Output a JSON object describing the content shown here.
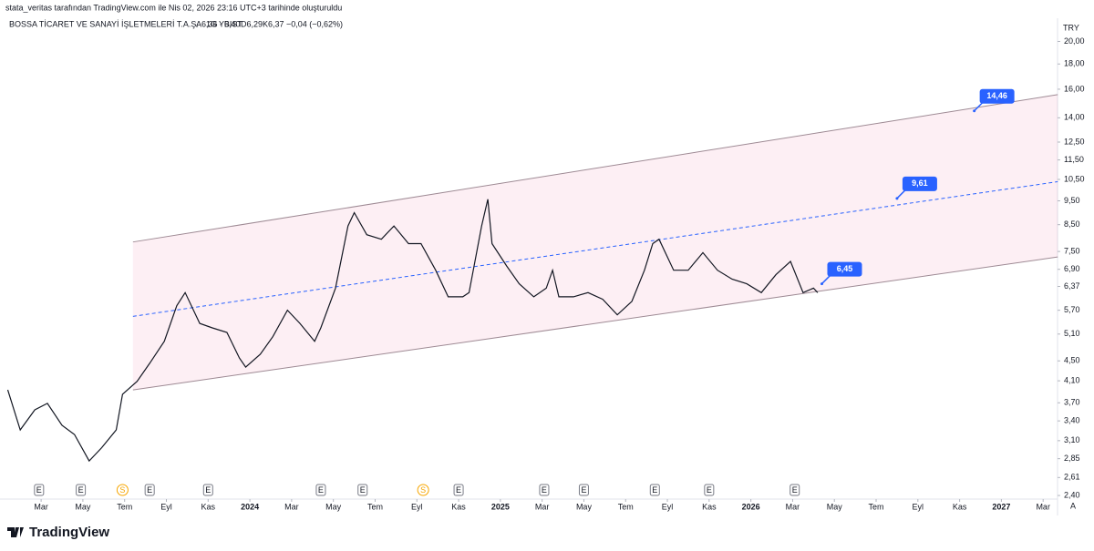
{
  "header": {
    "credit": "stata_veritas tarafından TradingView.com ile Nis 02, 2026 23:16 UTC+3 tarihinde oluşturuldu",
    "symbol": "BOSSA TİCARET VE SANAYİ İŞLETMELERİ T.A.Ş. · 1G · BIST",
    "ohlc": [
      "A6,36",
      "Y6,40",
      "D6,29",
      "K6,37"
    ],
    "change": "−0,04 (−0,62%)",
    "logo": "TradingView"
  },
  "chart_data": {
    "type": "line",
    "log_scale": true,
    "grid": false,
    "currency": "TRY",
    "series": [
      {
        "name": "BOSSA",
        "color": "#131722",
        "x": [
          0.4,
          1.0,
          1.7,
          2.3,
          3.0,
          3.6,
          4.3,
          4.9,
          5.6,
          5.9,
          6.6,
          7.2,
          7.9,
          8.5,
          8.9,
          9.6,
          10.2,
          10.9,
          11.5,
          11.8,
          12.5,
          13.1,
          13.8,
          14.4,
          15.1,
          15.4,
          16.1,
          16.7,
          17.0,
          17.6,
          18.3,
          18.9,
          19.6,
          20.2,
          20.9,
          21.5,
          22.2,
          22.5,
          23.1,
          23.4,
          23.6,
          24.3,
          24.9,
          25.6,
          26.2,
          26.5,
          26.8,
          27.5,
          28.2,
          28.9,
          29.6,
          30.3,
          30.9,
          31.3,
          31.6,
          32.3,
          33.0,
          33.7,
          34.4,
          35.1,
          35.8,
          36.5,
          37.2,
          37.9,
          38.5,
          39.0,
          39.2
        ],
        "values": [
          3.93,
          3.26,
          3.58,
          3.69,
          3.33,
          3.19,
          2.82,
          3.0,
          3.26,
          3.85,
          4.09,
          4.45,
          4.93,
          5.82,
          6.19,
          5.36,
          5.25,
          5.14,
          4.56,
          4.37,
          4.64,
          5.04,
          5.7,
          5.36,
          4.93,
          5.25,
          6.32,
          8.45,
          8.99,
          8.11,
          7.94,
          8.45,
          7.78,
          7.78,
          6.87,
          6.07,
          6.07,
          6.19,
          8.45,
          9.57,
          7.78,
          7.01,
          6.45,
          6.07,
          6.32,
          6.87,
          6.07,
          6.07,
          6.19,
          6.0,
          5.58,
          5.94,
          6.87,
          7.78,
          7.94,
          6.87,
          6.87,
          7.46,
          6.87,
          6.59,
          6.45,
          6.19,
          6.73,
          7.16,
          6.19,
          6.32,
          6.19
        ]
      }
    ],
    "channel": {
      "color": "#9e8a94",
      "fill": "rgba(233,30,99,0.07)",
      "mid_color": "#2962ff",
      "upper": [
        {
          "x": 6.4,
          "y": 7.84
        },
        {
          "x": 50.7,
          "y": 15.6
        }
      ],
      "middle": [
        {
          "x": 6.4,
          "y": 5.54
        },
        {
          "x": 50.7,
          "y": 10.39
        }
      ],
      "lower": [
        {
          "x": 6.4,
          "y": 3.93
        },
        {
          "x": 50.7,
          "y": 7.31
        }
      ]
    },
    "annotations": [
      {
        "x": 46.7,
        "value": 14.46,
        "label": "14,46"
      },
      {
        "x": 43.0,
        "value": 9.61,
        "label": "9,61"
      },
      {
        "x": 39.4,
        "value": 6.45,
        "label": "6,45"
      }
    ],
    "events": [
      {
        "x": 1.9,
        "label": "E"
      },
      {
        "x": 3.9,
        "label": "E"
      },
      {
        "x": 5.9,
        "label": "S"
      },
      {
        "x": 7.2,
        "label": "E"
      },
      {
        "x": 10.0,
        "label": "E"
      },
      {
        "x": 15.4,
        "label": "E"
      },
      {
        "x": 17.4,
        "label": "E"
      },
      {
        "x": 20.3,
        "label": "S"
      },
      {
        "x": 22.0,
        "label": "E"
      },
      {
        "x": 26.1,
        "label": "E"
      },
      {
        "x": 28.0,
        "label": "E"
      },
      {
        "x": 31.4,
        "label": "E"
      },
      {
        "x": 34.0,
        "label": "E"
      },
      {
        "x": 38.1,
        "label": "E"
      }
    ],
    "xlim": [
      0.03,
      50.69
    ],
    "xticks": [
      {
        "value": 2,
        "label": "Mar"
      },
      {
        "value": 4,
        "label": "May"
      },
      {
        "value": 6,
        "label": "Tem"
      },
      {
        "value": 8,
        "label": "Eyl"
      },
      {
        "value": 10,
        "label": "Kas"
      },
      {
        "value": 12,
        "label": "2024"
      },
      {
        "value": 14,
        "label": "Mar"
      },
      {
        "value": 16,
        "label": "May"
      },
      {
        "value": 18,
        "label": "Tem"
      },
      {
        "value": 20,
        "label": "Eyl"
      },
      {
        "value": 22,
        "label": "Kas"
      },
      {
        "value": 24,
        "label": "2025"
      },
      {
        "value": 26,
        "label": "Mar"
      },
      {
        "value": 28,
        "label": "May"
      },
      {
        "value": 30,
        "label": "Tem"
      },
      {
        "value": 32,
        "label": "Eyl"
      },
      {
        "value": 34,
        "label": "Kas"
      },
      {
        "value": 36,
        "label": "2026"
      },
      {
        "value": 38,
        "label": "Mar"
      },
      {
        "value": 40,
        "label": "May"
      },
      {
        "value": 42,
        "label": "Tem"
      },
      {
        "value": 44,
        "label": "Eyl"
      },
      {
        "value": 46,
        "label": "Kas"
      },
      {
        "value": 48,
        "label": "2027"
      },
      {
        "value": 50,
        "label": "Mar"
      }
    ],
    "ylim": [
      2.36,
      22.1
    ],
    "yticks": [
      {
        "value": 20,
        "label": "20,00"
      },
      {
        "value": 18,
        "label": "18,00"
      },
      {
        "value": 16,
        "label": "16,00"
      },
      {
        "value": 14,
        "label": "14,00"
      },
      {
        "value": 12.5,
        "label": "12,50"
      },
      {
        "value": 11.5,
        "label": "11,50"
      },
      {
        "value": 10.5,
        "label": "10,50"
      },
      {
        "value": 9.5,
        "label": "9,50"
      },
      {
        "value": 8.5,
        "label": "8,50"
      },
      {
        "value": 7.5,
        "label": "7,50"
      },
      {
        "value": 6.9,
        "label": "6,90"
      },
      {
        "value": 6.37,
        "label": "6,37"
      },
      {
        "value": 5.7,
        "label": "5,70"
      },
      {
        "value": 5.1,
        "label": "5,10"
      },
      {
        "value": 4.5,
        "label": "4,50"
      },
      {
        "value": 4.1,
        "label": "4,10"
      },
      {
        "value": 3.7,
        "label": "3,70"
      },
      {
        "value": 3.4,
        "label": "3,40"
      },
      {
        "value": 3.1,
        "label": "3,10"
      },
      {
        "value": 2.85,
        "label": "2,85"
      },
      {
        "value": 2.61,
        "label": "2,61"
      },
      {
        "value": 2.4,
        "label": "2,40"
      }
    ]
  }
}
